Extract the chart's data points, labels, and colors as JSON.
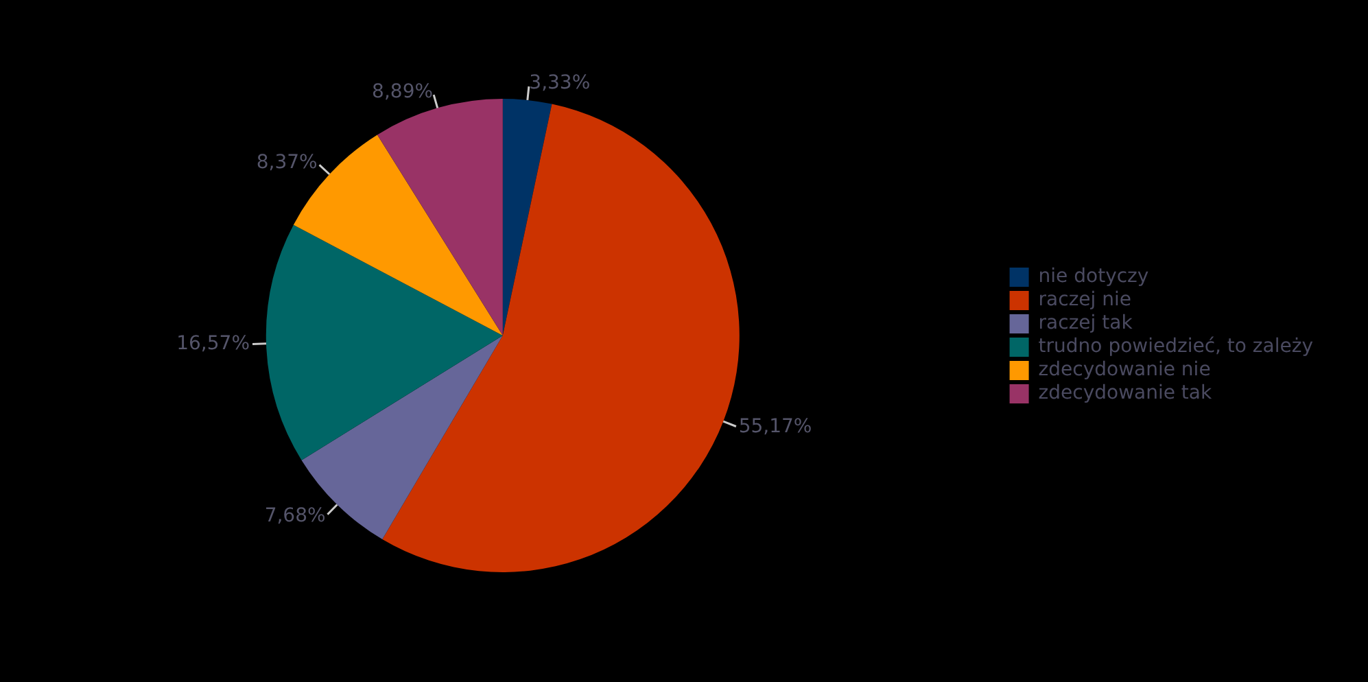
{
  "chart_data": {
    "type": "pie",
    "categories": [
      "nie dotyczy",
      "raczej nie",
      "raczej tak",
      "trudno powiedzieć, to zależy",
      "zdecydowanie nie",
      "zdecydowanie tak"
    ],
    "values": [
      3.33,
      55.17,
      7.68,
      16.57,
      8.37,
      8.89
    ],
    "value_labels": [
      "3,33%",
      "55,17%",
      "7,68%",
      "16,57%",
      "8,37%",
      "8,89%"
    ],
    "colors": [
      "#003366",
      "#cc3300",
      "#666699",
      "#006666",
      "#ff9900",
      "#993366"
    ],
    "legend": "right"
  }
}
